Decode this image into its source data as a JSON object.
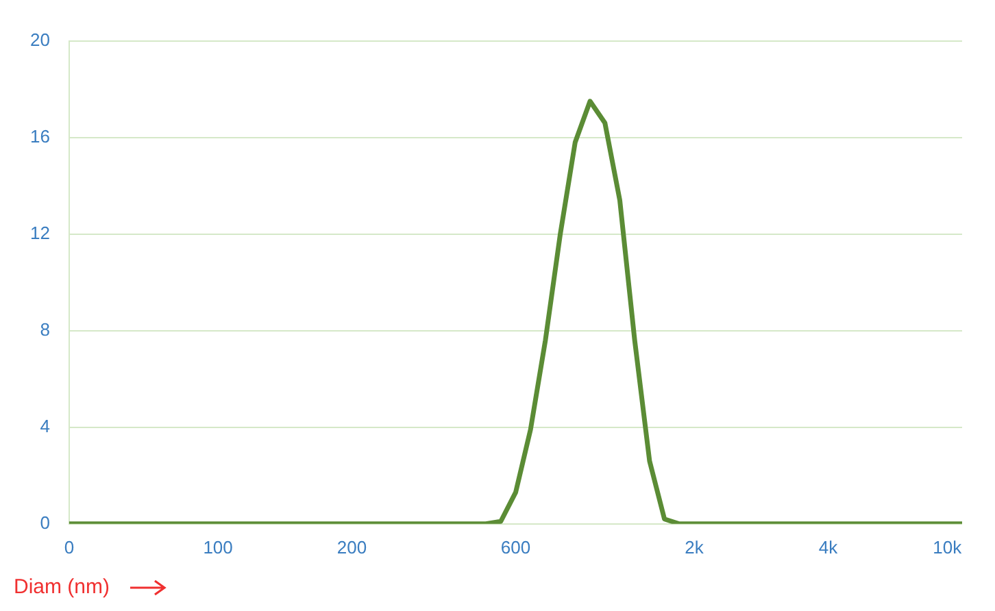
{
  "chart_data": {
    "type": "line",
    "xlabel": "Diam (nm)",
    "categories": [
      "0",
      null,
      null,
      null,
      null,
      null,
      null,
      null,
      null,
      null,
      "100",
      null,
      null,
      null,
      null,
      null,
      null,
      null,
      null,
      "200",
      null,
      null,
      null,
      null,
      null,
      null,
      null,
      null,
      null,
      null,
      "600",
      null,
      null,
      null,
      null,
      null,
      null,
      null,
      null,
      null,
      null,
      null,
      "2k",
      null,
      null,
      null,
      null,
      null,
      null,
      null,
      null,
      "4k",
      null,
      null,
      null,
      null,
      null,
      null,
      null,
      "10k",
      null
    ],
    "series": [
      {
        "color": "#5b8c35",
        "values": [
          0,
          0,
          0,
          0,
          0,
          0,
          0,
          0,
          0,
          0,
          0,
          0,
          0,
          0,
          0,
          0,
          0,
          0,
          0,
          0,
          0,
          0,
          0,
          0,
          0,
          0,
          0,
          0,
          0,
          0.1,
          1.3,
          3.9,
          7.6,
          12.0,
          15.8,
          17.5,
          16.6,
          13.4,
          7.6,
          2.6,
          0.2,
          0,
          0,
          0,
          0,
          0,
          0,
          0,
          0,
          0,
          0,
          0,
          0,
          0,
          0,
          0,
          0,
          0,
          0,
          0,
          0
        ]
      }
    ],
    "ylim": [
      0,
      20
    ],
    "yticks": [
      0,
      4,
      8,
      12,
      16,
      20
    ],
    "grid": "y",
    "legend": false,
    "marker": "none",
    "line_style": "solid"
  }
}
